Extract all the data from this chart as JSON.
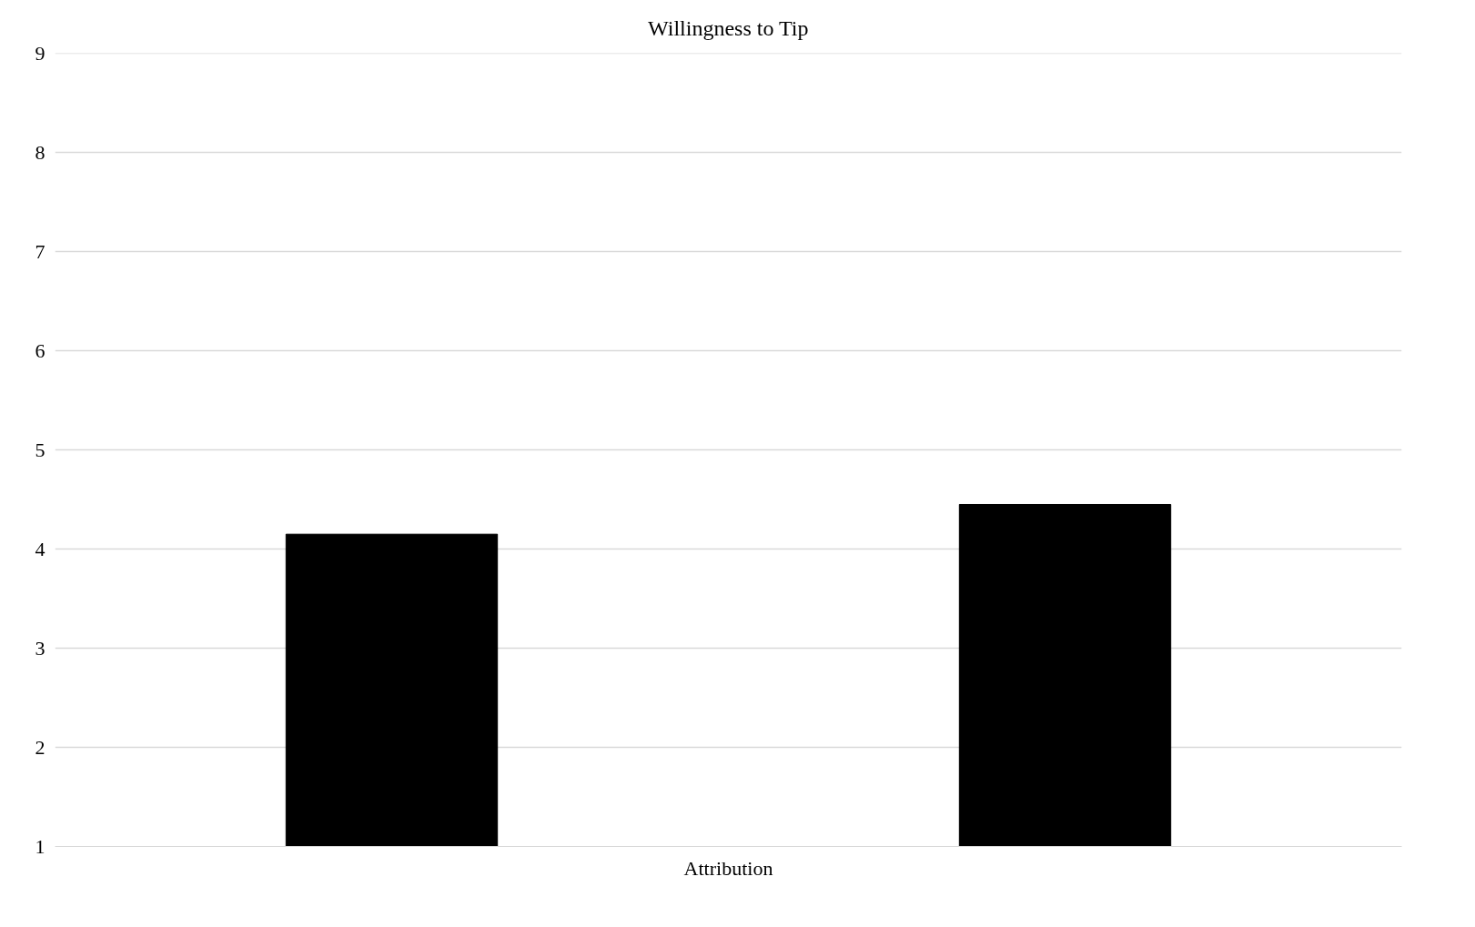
{
  "chart_data": {
    "type": "bar",
    "title": "Willingness to Tip",
    "categories": [
      "Attribution"
    ],
    "series": [
      {
        "color": "#000000",
        "values": [
          4.15
        ]
      },
      {
        "color": "#000000",
        "values": [
          4.45
        ]
      }
    ],
    "ylim": [
      1,
      9
    ],
    "yticks": [
      1,
      2,
      3,
      4,
      5,
      6,
      7,
      8,
      9
    ],
    "grid": "y"
  }
}
